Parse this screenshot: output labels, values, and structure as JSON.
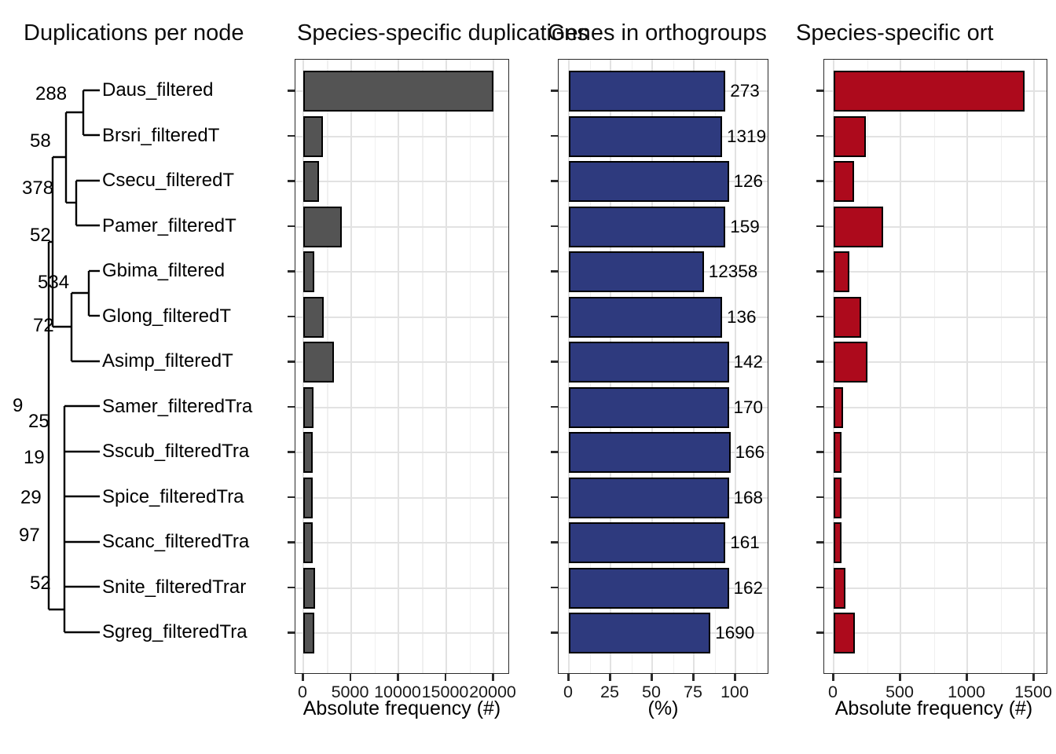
{
  "figure": {
    "titles": {
      "tree_panel": "Duplications per node",
      "dup_panel": "Species-specific duplications",
      "pct_panel": "Genes in orthogroups",
      "ortho_panel": "Species-specific ort"
    }
  },
  "tree": {
    "species": [
      "Daus_filtered",
      "Brsri_filteredT",
      "Csecu_filteredT",
      "Pamer_filteredT",
      "Gbima_filtered",
      "Glong_filteredT",
      "Asimp_filteredT",
      "Samer_filteredTra",
      "Sscub_filteredTra",
      "Spice_filteredTra",
      "Scanc_filteredTra",
      "Snite_filteredTrar",
      "Sgreg_filteredTra"
    ],
    "node_labels": [
      "288",
      "58",
      "378",
      "52",
      "534",
      "72",
      "9",
      "25",
      "19",
      "29",
      "97",
      "52"
    ]
  },
  "chart_data": [
    {
      "type": "bar",
      "orientation": "horizontal",
      "title": "Species-specific duplications",
      "xlabel": "Absolute frequency (#)",
      "categories": [
        "Daus_filtered",
        "Brsri_filteredT",
        "Csecu_filteredT",
        "Pamer_filteredT",
        "Gbima_filtered",
        "Glong_filteredT",
        "Asimp_filteredT",
        "Samer_filteredTra",
        "Sscub_filteredTra",
        "Spice_filteredTra",
        "Scanc_filteredTra",
        "Snite_filteredTrar",
        "Sgreg_filteredTra"
      ],
      "values": [
        20000,
        2100,
        1650,
        4050,
        1150,
        2150,
        3250,
        1080,
        1000,
        1000,
        990,
        1240,
        1160
      ],
      "xticks": [
        0,
        5000,
        10000,
        15000,
        20000
      ],
      "xlim": [
        0,
        21700
      ],
      "grid": true,
      "bar_color": "#545454"
    },
    {
      "type": "bar",
      "orientation": "horizontal",
      "title": "Genes in orthogroups",
      "xlabel": "(%)",
      "categories": [
        "Daus_filtered",
        "Brsri_filteredT",
        "Csecu_filteredT",
        "Pamer_filteredT",
        "Gbima_filtered",
        "Glong_filteredT",
        "Asimp_filteredT",
        "Samer_filteredTra",
        "Sscub_filteredTra",
        "Spice_filteredTra",
        "Scanc_filteredTra",
        "Snite_filteredTrar",
        "Sgreg_filteredTra"
      ],
      "values": [
        94,
        92,
        96,
        94,
        81,
        92,
        96,
        96,
        97,
        96,
        94,
        96,
        85
      ],
      "bar_labels": [
        "273",
        "1319",
        "126",
        "159",
        "12358",
        "136",
        "142",
        "170",
        "166",
        "168",
        "161",
        "162",
        "1690"
      ],
      "xticks": [
        0,
        25,
        50,
        75,
        100
      ],
      "xlim": [
        0,
        120
      ],
      "grid": true,
      "bar_color": "#2e3a7e"
    },
    {
      "type": "bar",
      "orientation": "horizontal",
      "title": "Species-specific ort",
      "xlabel": "Absolute frequency (#)",
      "categories": [
        "Daus_filtered",
        "Brsri_filteredT",
        "Csecu_filteredT",
        "Pamer_filteredT",
        "Gbima_filtered",
        "Glong_filteredT",
        "Asimp_filteredT",
        "Samer_filteredTra",
        "Sscub_filteredTra",
        "Spice_filteredTra",
        "Scanc_filteredTra",
        "Snite_filteredTrar",
        "Sgreg_filteredTra"
      ],
      "values": [
        1430,
        240,
        150,
        370,
        120,
        205,
        250,
        70,
        60,
        60,
        60,
        90,
        160
      ],
      "xticks": [
        0,
        500,
        1000,
        1500
      ],
      "xlim": [
        0,
        1600
      ],
      "grid": true,
      "bar_color": "#ad0a1c"
    }
  ]
}
